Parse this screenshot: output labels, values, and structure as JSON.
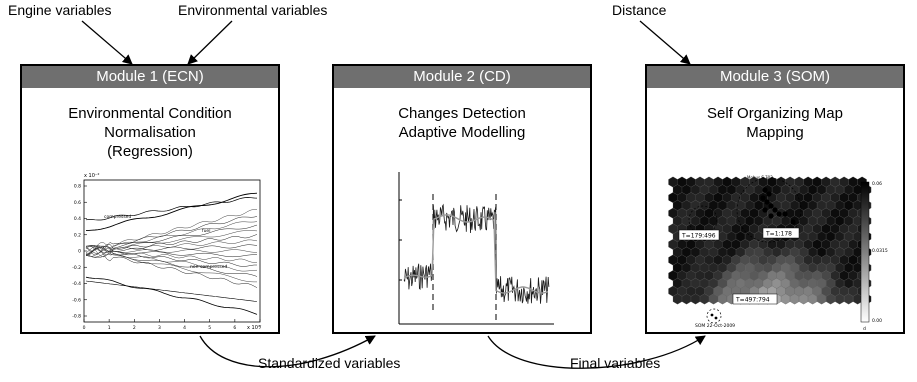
{
  "top_labels": {
    "engine": "Engine variables",
    "environmental": "Environmental variables",
    "distance": "Distance"
  },
  "modules": [
    {
      "header": "Module 1 (ECN)",
      "title_lines": [
        "Environmental Condition",
        "Normalisation",
        "(Regression)"
      ]
    },
    {
      "header": "Module 2 (CD)",
      "title_lines": [
        "Changes Detection",
        "Adaptive Modelling"
      ]
    },
    {
      "header": "Module 3 (SOM)",
      "title_lines": [
        "Self Organizing Map",
        "Mapping"
      ]
    }
  ],
  "bottom_labels": {
    "standardized": "Standardized variables",
    "final": "Final variables"
  },
  "plot1": {
    "x_exponent": "x 10⁴",
    "y_exponent": "x 10⁻²",
    "x_ticks": [
      "0",
      "1",
      "2",
      "3",
      "4",
      "5",
      "6",
      "7"
    ],
    "y_ticks": [
      "0.8",
      "0.6",
      "0.4",
      "0.2",
      "0",
      "-0.2",
      "-0.4",
      "-0.6",
      "-0.8"
    ],
    "annotations": [
      "compressed",
      "fuel",
      "non-compressed"
    ]
  },
  "som": {
    "top_note": "Mobus S 702",
    "cluster_labels": [
      "T=179:496",
      "T=1:178",
      "T=497:794"
    ],
    "footer": "SOM 22-Oct-2009",
    "colorbar_ticks": [
      "0.06",
      "0.0315",
      "0.00"
    ],
    "colorbar_unit": "d"
  }
}
